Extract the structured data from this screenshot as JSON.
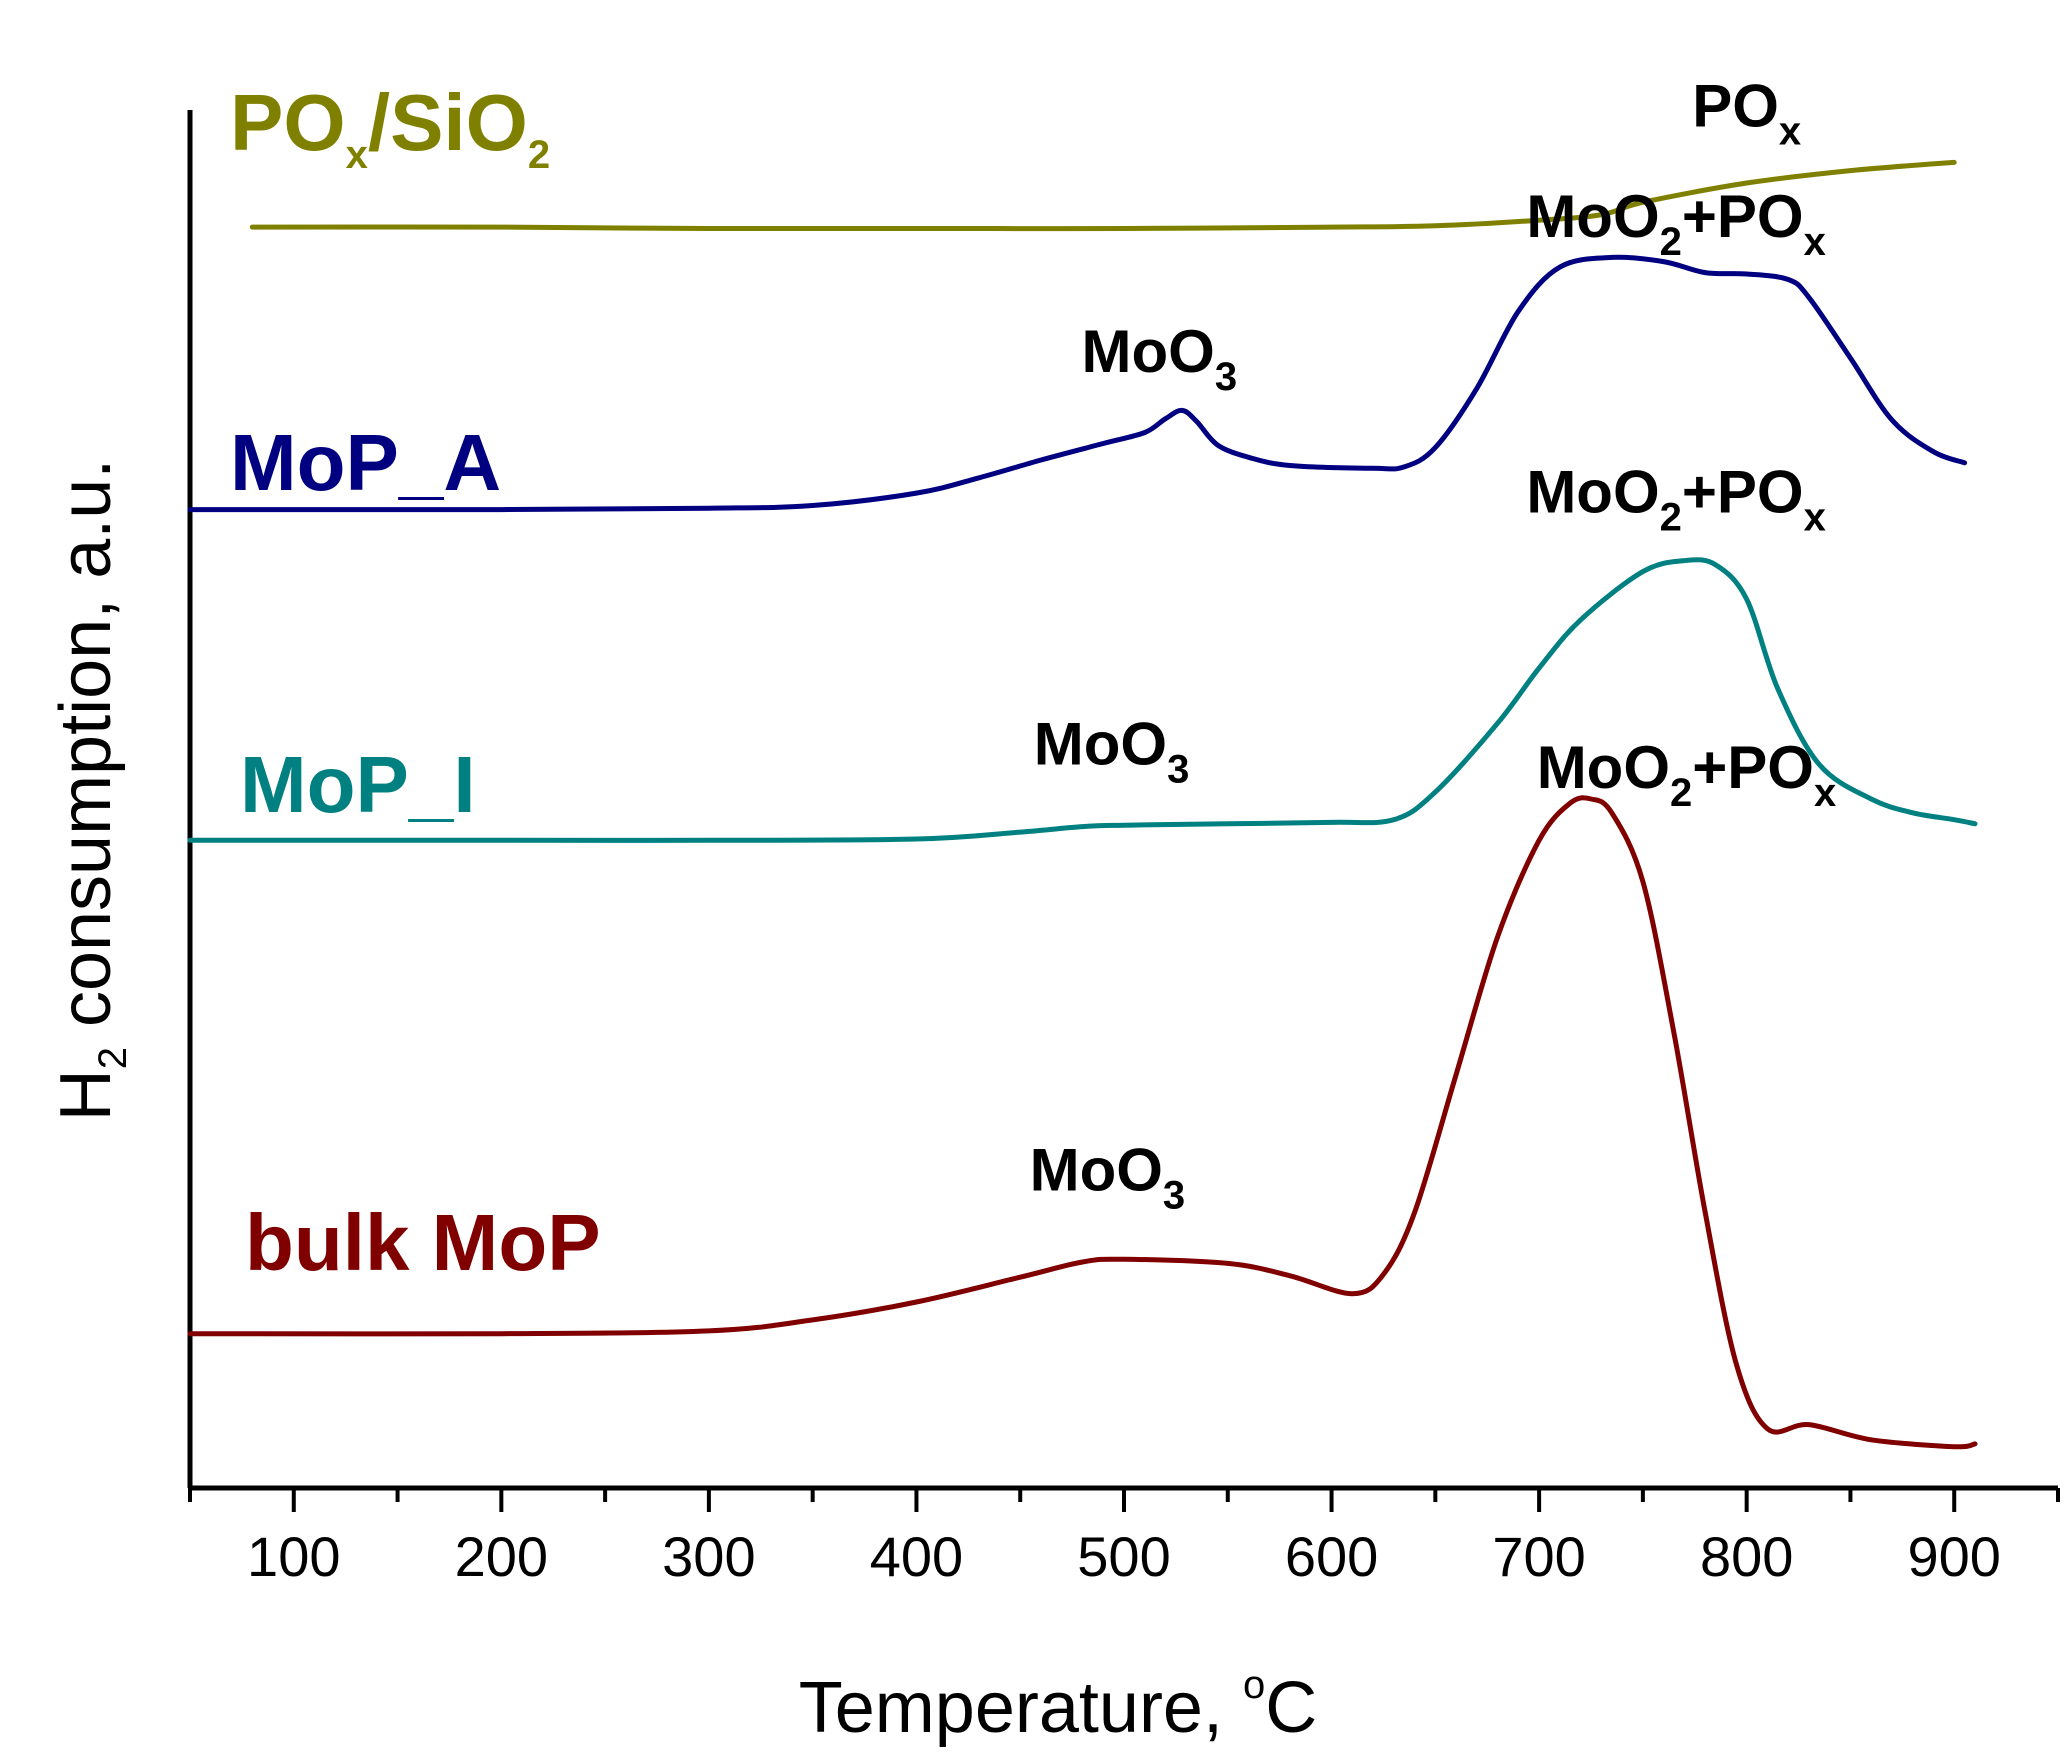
{
  "chart_data": {
    "type": "line",
    "xlabel": "Temperature, ",
    "xlabel_unit_sup": "o",
    "xlabel_unit": "C",
    "ylabel": "H",
    "ylabel_sub": "2",
    "ylabel_rest": " consumption, a.u.",
    "xlim": [
      50,
      950
    ],
    "ylim": [
      0,
      100
    ],
    "xticks": [
      100,
      200,
      300,
      400,
      500,
      600,
      700,
      800,
      900
    ],
    "xtick_labels": [
      "100",
      "200",
      "300",
      "400",
      "500",
      "600",
      "700",
      "800",
      "900"
    ],
    "colors": {
      "POx_SiO2": "#808000",
      "MoP_A": "#000080",
      "MoP_I": "#008080",
      "bulk_MoP": "#800000"
    },
    "series": [
      {
        "id": "POx_SiO2",
        "name_parts": [
          "PO",
          "x",
          "/SiO",
          "2"
        ],
        "x": [
          80,
          200,
          300,
          400,
          500,
          600,
          650,
          700,
          730,
          750,
          800,
          850,
          900
        ],
        "y": [
          91.5,
          91.5,
          91.4,
          91.4,
          91.4,
          91.5,
          91.6,
          92.0,
          92.4,
          93.3,
          94.7,
          95.6,
          96.2
        ]
      },
      {
        "id": "MoP_A",
        "name_parts": [
          "MoP_A"
        ],
        "x": [
          50,
          200,
          300,
          350,
          400,
          430,
          460,
          490,
          510,
          520,
          528,
          535,
          545,
          560,
          580,
          620,
          635,
          650,
          670,
          690,
          710,
          735,
          760,
          780,
          800,
          820,
          830,
          850,
          870,
          890,
          905
        ],
        "y": [
          71.0,
          71.0,
          71.1,
          71.3,
          72.2,
          73.3,
          74.6,
          75.8,
          76.6,
          77.6,
          78.2,
          77.4,
          75.7,
          74.8,
          74.2,
          74.0,
          74.1,
          75.5,
          79.8,
          85.4,
          88.6,
          89.3,
          89.0,
          88.2,
          88.1,
          87.7,
          86.4,
          82.0,
          77.5,
          75.2,
          74.4
        ]
      },
      {
        "id": "MoP_I",
        "name_parts": [
          "MoP_I"
        ],
        "x": [
          50,
          200,
          300,
          400,
          450,
          480,
          500,
          550,
          600,
          630,
          650,
          680,
          700,
          720,
          750,
          770,
          785,
          800,
          815,
          835,
          860,
          880,
          900,
          910
        ],
        "y": [
          47.0,
          47.0,
          47.0,
          47.1,
          47.6,
          48.0,
          48.1,
          48.2,
          48.3,
          48.5,
          50.5,
          55.5,
          59.5,
          63.0,
          66.5,
          67.3,
          67.0,
          64.5,
          58.0,
          52.5,
          50.0,
          49.0,
          48.5,
          48.2
        ]
      },
      {
        "id": "bulk_MoP",
        "name_parts": [
          "bulk MoP"
        ],
        "x": [
          50,
          200,
          300,
          350,
          400,
          450,
          480,
          500,
          550,
          580,
          610,
          625,
          640,
          660,
          680,
          700,
          715,
          725,
          735,
          750,
          765,
          780,
          795,
          810,
          830,
          860,
          900,
          910
        ],
        "y": [
          11.2,
          11.2,
          11.4,
          12.2,
          13.5,
          15.3,
          16.4,
          16.6,
          16.3,
          15.4,
          14.1,
          15.5,
          20.0,
          30.0,
          40.0,
          47.0,
          49.7,
          50.0,
          49.0,
          44.0,
          33.0,
          20.0,
          9.0,
          4.3,
          4.6,
          3.5,
          3.0,
          3.2
        ]
      }
    ],
    "annotations": [
      {
        "series": "POx_SiO2",
        "parts": [
          "PO",
          "x"
        ],
        "x": 800,
        "y": 98.8
      },
      {
        "series": "MoP_A",
        "parts": [
          "MoO",
          "3"
        ],
        "x": 517,
        "y": 81.0
      },
      {
        "series": "MoP_A",
        "parts": [
          "MoO",
          "2",
          "+PO",
          "x"
        ],
        "x": 766,
        "y": 90.8
      },
      {
        "series": "MoP_I",
        "parts": [
          "MoO",
          "3"
        ],
        "x": 494,
        "y": 52.5
      },
      {
        "series": "MoP_I",
        "parts": [
          "MoO",
          "2",
          "+PO",
          "x"
        ],
        "x": 766,
        "y": 70.8
      },
      {
        "series": "bulk_MoP",
        "parts": [
          "MoO",
          "3"
        ],
        "x": 492,
        "y": 21.6
      },
      {
        "series": "bulk_MoP",
        "parts": [
          "MoO",
          "2",
          "+PO",
          "x"
        ],
        "x": 771,
        "y": 50.8
      }
    ]
  }
}
